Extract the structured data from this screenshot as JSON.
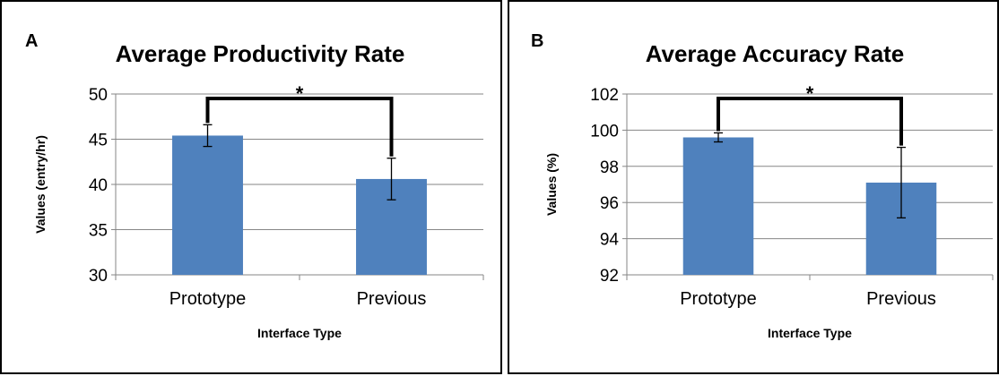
{
  "chart_data": [
    {
      "panel_letter": "A",
      "type": "bar",
      "title": "Average Productivity Rate",
      "xlabel": "Interface Type",
      "ylabel": "Values (entry/hr)",
      "categories": [
        "Prototype",
        "Previous"
      ],
      "values": [
        45.4,
        40.6
      ],
      "errors": [
        1.2,
        2.3
      ],
      "ylim": [
        30,
        50
      ],
      "yticks": [
        30,
        35,
        40,
        45,
        50
      ],
      "grid": true,
      "significance_label": "*",
      "bar_color": "#4F81BD"
    },
    {
      "panel_letter": "B",
      "type": "bar",
      "title": "Average Accuracy Rate",
      "xlabel": "Interface Type",
      "ylabel": "Values (%)",
      "categories": [
        "Prototype",
        "Previous"
      ],
      "values": [
        99.6,
        97.1
      ],
      "errors": [
        0.25,
        1.95
      ],
      "ylim": [
        92,
        102
      ],
      "yticks": [
        92,
        94,
        96,
        98,
        100,
        102
      ],
      "grid": true,
      "significance_label": "*",
      "bar_color": "#4F81BD"
    }
  ]
}
